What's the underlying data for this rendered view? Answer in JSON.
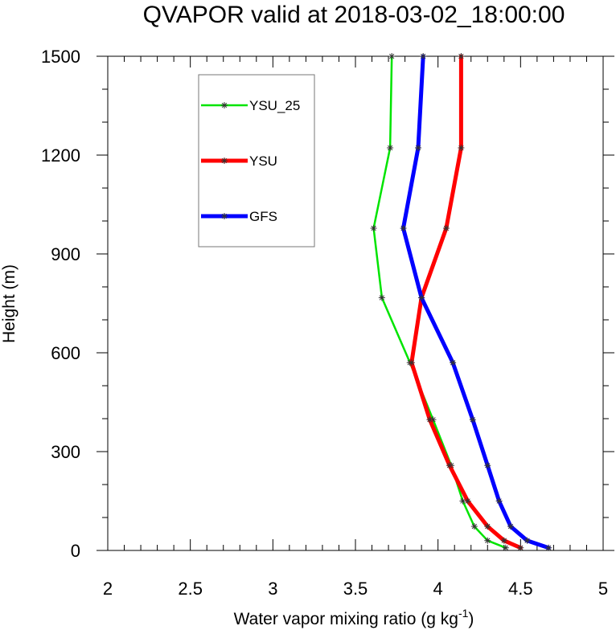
{
  "chart_data": {
    "type": "line",
    "title": "QVAPOR valid at 2018-03-02_18:00:00",
    "xlabel": "Water vapor mixing ratio (g kg",
    "xlabel_superscript": "-1",
    "xlabel_suffix": ")",
    "ylabel": "Height (m)",
    "xlim": [
      2,
      5
    ],
    "ylim": [
      0,
      1500
    ],
    "x_ticks": [
      2,
      2.5,
      3,
      3.5,
      4,
      4.5,
      5
    ],
    "x_tick_labels": [
      "2",
      "2.5",
      "3",
      "3.5",
      "4",
      "4.5",
      "5"
    ],
    "y_ticks": [
      0,
      300,
      600,
      900,
      1200,
      1500
    ],
    "y_tick_labels": [
      "0",
      "300",
      "600",
      "900",
      "1200",
      "1500"
    ],
    "grid": false,
    "legend_position": "top-left",
    "series": [
      {
        "name": "YSU_25",
        "color": "#00e400",
        "marker": "asterisk",
        "points": [
          [
            4.41,
            8
          ],
          [
            4.3,
            30
          ],
          [
            4.22,
            73
          ],
          [
            4.15,
            150
          ],
          [
            4.08,
            258
          ],
          [
            3.97,
            397
          ],
          [
            3.83,
            570
          ],
          [
            3.66,
            767
          ],
          [
            3.61,
            978
          ],
          [
            3.71,
            1222
          ],
          [
            3.72,
            1500
          ]
        ]
      },
      {
        "name": "YSU",
        "color": "#ff0000",
        "marker": "asterisk",
        "points": [
          [
            4.5,
            8
          ],
          [
            4.4,
            30
          ],
          [
            4.3,
            73
          ],
          [
            4.18,
            150
          ],
          [
            4.07,
            258
          ],
          [
            3.95,
            397
          ],
          [
            3.84,
            570
          ],
          [
            3.9,
            767
          ],
          [
            4.05,
            978
          ],
          [
            4.14,
            1222
          ],
          [
            4.14,
            1500
          ]
        ]
      },
      {
        "name": "GFS",
        "color": "#0000ff",
        "marker": "asterisk",
        "points": [
          [
            4.67,
            8
          ],
          [
            4.54,
            30
          ],
          [
            4.44,
            73
          ],
          [
            4.37,
            150
          ],
          [
            4.3,
            258
          ],
          [
            4.21,
            397
          ],
          [
            4.09,
            570
          ],
          [
            3.9,
            767
          ],
          [
            3.79,
            978
          ],
          [
            3.88,
            1222
          ],
          [
            3.91,
            1500
          ]
        ]
      }
    ]
  }
}
